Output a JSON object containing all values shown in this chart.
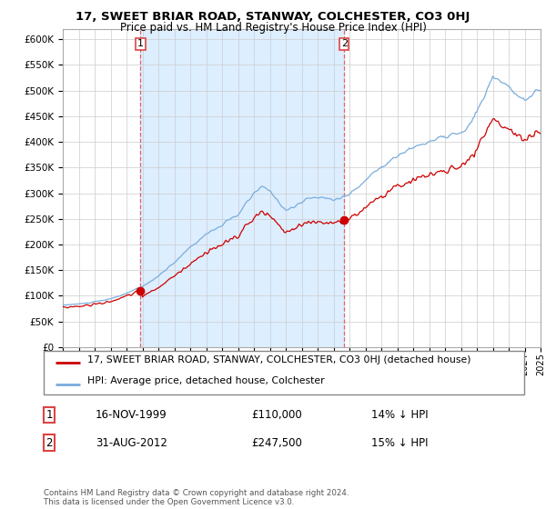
{
  "title": "17, SWEET BRIAR ROAD, STANWAY, COLCHESTER, CO3 0HJ",
  "subtitle": "Price paid vs. HM Land Registry's House Price Index (HPI)",
  "legend_line1": "17, SWEET BRIAR ROAD, STANWAY, COLCHESTER, CO3 0HJ (detached house)",
  "legend_line2": "HPI: Average price, detached house, Colchester",
  "sale1_date": "16-NOV-1999",
  "sale1_price": "£110,000",
  "sale1_info": "14% ↓ HPI",
  "sale1_year": 1999.88,
  "sale1_value": 110000,
  "sale2_date": "31-AUG-2012",
  "sale2_price": "£247,500",
  "sale2_info": "15% ↓ HPI",
  "sale2_year": 2012.67,
  "sale2_value": 247500,
  "hpi_color": "#7aaddc",
  "price_color": "#cc0000",
  "vline_color": "#dd4444",
  "shade_color": "#ddeeff",
  "footnote": "Contains HM Land Registry data © Crown copyright and database right 2024.\nThis data is licensed under the Open Government Licence v3.0.",
  "ylim_min": 0,
  "ylim_max": 620000,
  "xlim_min": 1995,
  "xlim_max": 2025,
  "background_color": "#ffffff"
}
